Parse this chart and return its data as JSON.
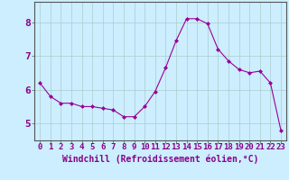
{
  "x": [
    0,
    1,
    2,
    3,
    4,
    5,
    6,
    7,
    8,
    9,
    10,
    11,
    12,
    13,
    14,
    15,
    16,
    17,
    18,
    19,
    20,
    21,
    22,
    23
  ],
  "y": [
    6.2,
    5.8,
    5.6,
    5.6,
    5.5,
    5.5,
    5.45,
    5.4,
    5.2,
    5.2,
    5.5,
    5.95,
    6.65,
    7.45,
    8.1,
    8.1,
    7.95,
    7.2,
    6.85,
    6.6,
    6.5,
    6.55,
    6.2,
    4.8
  ],
  "line_color": "#990099",
  "marker": "D",
  "marker_size": 2.0,
  "background_color": "#cceeff",
  "grid_color": "#aacccc",
  "xlabel": "Windchill (Refroidissement éolien,°C)",
  "xlabel_color": "#880088",
  "xlim": [
    -0.5,
    23.5
  ],
  "ylim": [
    4.5,
    8.6
  ],
  "yticks": [
    5,
    6,
    7,
    8
  ],
  "xticks": [
    0,
    1,
    2,
    3,
    4,
    5,
    6,
    7,
    8,
    9,
    10,
    11,
    12,
    13,
    14,
    15,
    16,
    17,
    18,
    19,
    20,
    21,
    22,
    23
  ],
  "tick_label_color": "#880088",
  "tick_label_fontsize": 6.5,
  "xlabel_fontsize": 7.0,
  "ytick_label_fontsize": 8.0
}
